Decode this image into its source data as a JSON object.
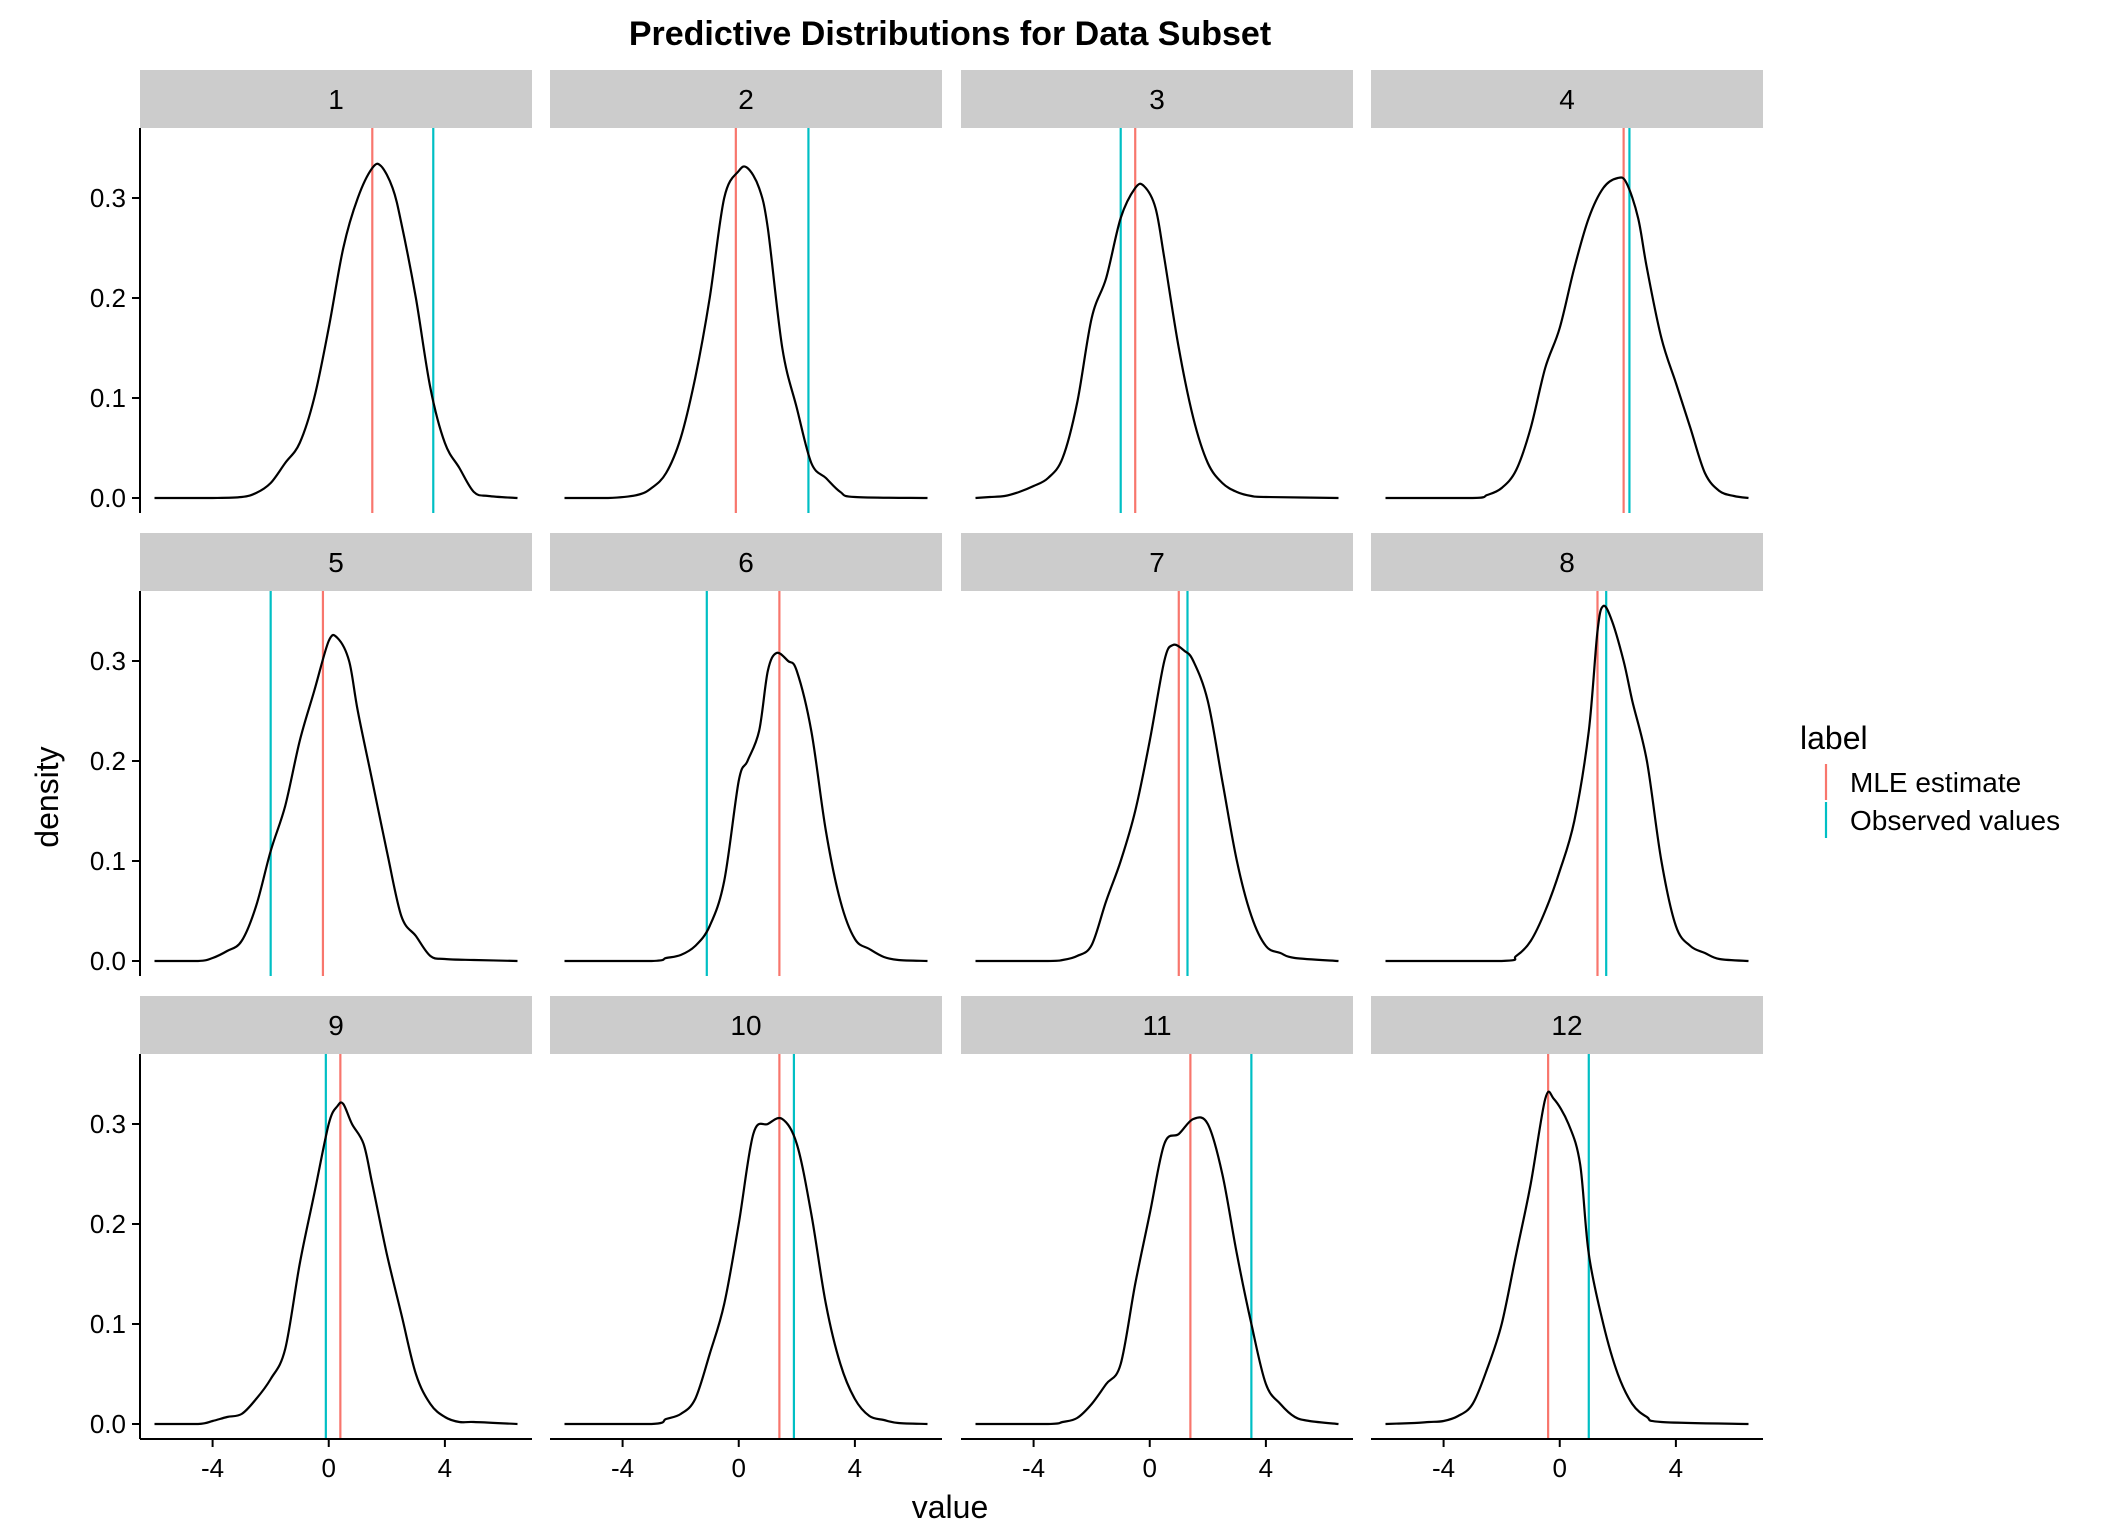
{
  "chart_data": {
    "type": "line",
    "title": "Predictive Distributions for Data Subset",
    "xlabel": "value",
    "ylabel": "density",
    "xlim": [
      -6.5,
      7
    ],
    "ylim": [
      -0.015,
      0.37
    ],
    "x_ticks": [
      -4,
      0,
      4
    ],
    "x_tick_labels": [
      "-4",
      "0",
      "4"
    ],
    "y_ticks": [
      0.0,
      0.1,
      0.2,
      0.3
    ],
    "y_tick_labels": [
      "0.0",
      "0.1",
      "0.2",
      "0.3"
    ],
    "grid": false,
    "layout": {
      "rows": 3,
      "cols": 4
    },
    "legend": {
      "title": "label",
      "position": "right",
      "entries": [
        {
          "name": "MLE estimate",
          "color": "#F8766D"
        },
        {
          "name": "Observed values",
          "color": "#00BFC4"
        }
      ]
    },
    "density_color": "#000000",
    "panels": [
      {
        "label": "1",
        "mle": 1.5,
        "observed": 3.6,
        "x_range": [
          -6,
          6.5
        ],
        "density": [
          [
            -6,
            0
          ],
          [
            -4,
            0
          ],
          [
            -3,
            0.001
          ],
          [
            -2.5,
            0.005
          ],
          [
            -2,
            0.015
          ],
          [
            -1.5,
            0.035
          ],
          [
            -1,
            0.055
          ],
          [
            -0.5,
            0.1
          ],
          [
            0,
            0.17
          ],
          [
            0.5,
            0.25
          ],
          [
            1,
            0.3
          ],
          [
            1.5,
            0.33
          ],
          [
            1.8,
            0.332
          ],
          [
            2.2,
            0.31
          ],
          [
            2.5,
            0.275
          ],
          [
            3,
            0.2
          ],
          [
            3.5,
            0.11
          ],
          [
            4,
            0.055
          ],
          [
            4.5,
            0.03
          ],
          [
            5,
            0.006
          ],
          [
            5.5,
            0.002
          ],
          [
            6.5,
            0
          ]
        ]
      },
      {
        "label": "2",
        "mle": -0.1,
        "observed": 2.4,
        "x_range": [
          -6,
          6.5
        ],
        "density": [
          [
            -6,
            0
          ],
          [
            -4.5,
            0
          ],
          [
            -3.5,
            0.003
          ],
          [
            -3,
            0.01
          ],
          [
            -2.5,
            0.025
          ],
          [
            -2,
            0.06
          ],
          [
            -1.5,
            0.12
          ],
          [
            -1,
            0.2
          ],
          [
            -0.5,
            0.3
          ],
          [
            0,
            0.327
          ],
          [
            0.3,
            0.33
          ],
          [
            0.7,
            0.31
          ],
          [
            1,
            0.27
          ],
          [
            1.5,
            0.15
          ],
          [
            2,
            0.09
          ],
          [
            2.5,
            0.035
          ],
          [
            3,
            0.02
          ],
          [
            3.5,
            0.006
          ],
          [
            4,
            0.001
          ],
          [
            6.5,
            0
          ]
        ]
      },
      {
        "label": "3",
        "mle": -0.5,
        "observed": -1.0,
        "x_range": [
          -6,
          6.5
        ],
        "density": [
          [
            -6,
            0
          ],
          [
            -5.5,
            0.001
          ],
          [
            -5,
            0.002
          ],
          [
            -4.5,
            0.006
          ],
          [
            -4,
            0.012
          ],
          [
            -3.5,
            0.02
          ],
          [
            -3,
            0.04
          ],
          [
            -2.5,
            0.095
          ],
          [
            -2,
            0.18
          ],
          [
            -1.5,
            0.22
          ],
          [
            -1,
            0.28
          ],
          [
            -0.5,
            0.31
          ],
          [
            -0.2,
            0.312
          ],
          [
            0.2,
            0.29
          ],
          [
            0.5,
            0.24
          ],
          [
            1,
            0.15
          ],
          [
            1.5,
            0.08
          ],
          [
            2,
            0.035
          ],
          [
            2.5,
            0.015
          ],
          [
            3,
            0.006
          ],
          [
            3.5,
            0.002
          ],
          [
            4,
            0.001
          ],
          [
            6.5,
            0
          ]
        ]
      },
      {
        "label": "4",
        "mle": 2.2,
        "observed": 2.4,
        "x_range": [
          -6,
          6.5
        ],
        "density": [
          [
            -6,
            0
          ],
          [
            -3,
            0
          ],
          [
            -2.5,
            0.003
          ],
          [
            -2,
            0.01
          ],
          [
            -1.5,
            0.028
          ],
          [
            -1,
            0.07
          ],
          [
            -0.5,
            0.13
          ],
          [
            0,
            0.17
          ],
          [
            0.5,
            0.23
          ],
          [
            1,
            0.28
          ],
          [
            1.5,
            0.31
          ],
          [
            2,
            0.32
          ],
          [
            2.3,
            0.315
          ],
          [
            2.7,
            0.28
          ],
          [
            3,
            0.23
          ],
          [
            3.5,
            0.16
          ],
          [
            4,
            0.115
          ],
          [
            4.5,
            0.07
          ],
          [
            5,
            0.025
          ],
          [
            5.5,
            0.007
          ],
          [
            6,
            0.002
          ],
          [
            6.5,
            0
          ]
        ]
      },
      {
        "label": "5",
        "mle": -0.2,
        "observed": -2.0,
        "x_range": [
          -6,
          6.5
        ],
        "density": [
          [
            -6,
            0
          ],
          [
            -4.5,
            0
          ],
          [
            -4,
            0.003
          ],
          [
            -3.5,
            0.01
          ],
          [
            -3,
            0.02
          ],
          [
            -2.5,
            0.055
          ],
          [
            -2,
            0.11
          ],
          [
            -1.5,
            0.155
          ],
          [
            -1,
            0.22
          ],
          [
            -0.5,
            0.27
          ],
          [
            0,
            0.32
          ],
          [
            0.3,
            0.323
          ],
          [
            0.7,
            0.3
          ],
          [
            1,
            0.25
          ],
          [
            1.5,
            0.18
          ],
          [
            2,
            0.11
          ],
          [
            2.5,
            0.045
          ],
          [
            3,
            0.025
          ],
          [
            3.5,
            0.005
          ],
          [
            4,
            0.002
          ],
          [
            5,
            0.001
          ],
          [
            6.5,
            0
          ]
        ]
      },
      {
        "label": "6",
        "mle": 1.4,
        "observed": -1.1,
        "x_range": [
          -6,
          6.5
        ],
        "density": [
          [
            -6,
            0
          ],
          [
            -3,
            0
          ],
          [
            -2.5,
            0.003
          ],
          [
            -2,
            0.006
          ],
          [
            -1.5,
            0.015
          ],
          [
            -1,
            0.035
          ],
          [
            -0.5,
            0.08
          ],
          [
            0,
            0.18
          ],
          [
            0.3,
            0.2
          ],
          [
            0.7,
            0.23
          ],
          [
            1,
            0.29
          ],
          [
            1.3,
            0.308
          ],
          [
            1.7,
            0.3
          ],
          [
            2,
            0.29
          ],
          [
            2.5,
            0.23
          ],
          [
            3,
            0.13
          ],
          [
            3.5,
            0.06
          ],
          [
            4,
            0.022
          ],
          [
            4.5,
            0.012
          ],
          [
            5,
            0.004
          ],
          [
            5.5,
            0.001
          ],
          [
            6.5,
            0
          ]
        ]
      },
      {
        "label": "7",
        "mle": 1.0,
        "observed": 1.3,
        "x_range": [
          -6,
          6.5
        ],
        "density": [
          [
            -6,
            0
          ],
          [
            -3.5,
            0
          ],
          [
            -3,
            0.001
          ],
          [
            -2.5,
            0.005
          ],
          [
            -2,
            0.016
          ],
          [
            -1.5,
            0.06
          ],
          [
            -1,
            0.1
          ],
          [
            -0.5,
            0.15
          ],
          [
            0,
            0.22
          ],
          [
            0.5,
            0.3
          ],
          [
            0.8,
            0.316
          ],
          [
            1.2,
            0.31
          ],
          [
            1.5,
            0.3
          ],
          [
            2,
            0.26
          ],
          [
            2.5,
            0.18
          ],
          [
            3,
            0.1
          ],
          [
            3.5,
            0.045
          ],
          [
            4,
            0.015
          ],
          [
            4.5,
            0.008
          ],
          [
            5,
            0.003
          ],
          [
            6.5,
            0
          ]
        ]
      },
      {
        "label": "8",
        "mle": 1.3,
        "observed": 1.6,
        "x_range": [
          -6,
          6.5
        ],
        "density": [
          [
            -6,
            0
          ],
          [
            -2,
            0
          ],
          [
            -1.5,
            0.005
          ],
          [
            -1,
            0.02
          ],
          [
            -0.5,
            0.05
          ],
          [
            0,
            0.09
          ],
          [
            0.5,
            0.14
          ],
          [
            1,
            0.23
          ],
          [
            1.3,
            0.33
          ],
          [
            1.5,
            0.355
          ],
          [
            1.8,
            0.34
          ],
          [
            2.2,
            0.3
          ],
          [
            2.5,
            0.26
          ],
          [
            3,
            0.2
          ],
          [
            3.5,
            0.1
          ],
          [
            4,
            0.035
          ],
          [
            4.5,
            0.015
          ],
          [
            5,
            0.008
          ],
          [
            5.5,
            0.002
          ],
          [
            6.5,
            0
          ]
        ]
      },
      {
        "label": "9",
        "mle": 0.4,
        "observed": -0.1,
        "x_range": [
          -6,
          6.5
        ],
        "density": [
          [
            -6,
            0
          ],
          [
            -4.5,
            0
          ],
          [
            -4,
            0.003
          ],
          [
            -3.5,
            0.007
          ],
          [
            -3,
            0.01
          ],
          [
            -2.5,
            0.025
          ],
          [
            -2,
            0.045
          ],
          [
            -1.5,
            0.075
          ],
          [
            -1,
            0.16
          ],
          [
            -0.5,
            0.23
          ],
          [
            0,
            0.3
          ],
          [
            0.3,
            0.318
          ],
          [
            0.5,
            0.32
          ],
          [
            0.8,
            0.3
          ],
          [
            1.2,
            0.28
          ],
          [
            1.5,
            0.24
          ],
          [
            2,
            0.17
          ],
          [
            2.5,
            0.11
          ],
          [
            3,
            0.05
          ],
          [
            3.5,
            0.02
          ],
          [
            4,
            0.007
          ],
          [
            4.5,
            0.002
          ],
          [
            5,
            0.002
          ],
          [
            6.5,
            0
          ]
        ]
      },
      {
        "label": "10",
        "mle": 1.4,
        "observed": 1.9,
        "x_range": [
          -6,
          6.5
        ],
        "density": [
          [
            -6,
            0
          ],
          [
            -3,
            0
          ],
          [
            -2.5,
            0.005
          ],
          [
            -2,
            0.01
          ],
          [
            -1.5,
            0.025
          ],
          [
            -1,
            0.07
          ],
          [
            -0.5,
            0.12
          ],
          [
            0,
            0.2
          ],
          [
            0.5,
            0.29
          ],
          [
            1,
            0.3
          ],
          [
            1.5,
            0.305
          ],
          [
            2,
            0.28
          ],
          [
            2.5,
            0.21
          ],
          [
            3,
            0.12
          ],
          [
            3.5,
            0.06
          ],
          [
            4,
            0.025
          ],
          [
            4.5,
            0.008
          ],
          [
            5,
            0.004
          ],
          [
            5.5,
            0.001
          ],
          [
            6.5,
            0
          ]
        ]
      },
      {
        "label": "11",
        "mle": 1.4,
        "observed": 3.5,
        "x_range": [
          -6,
          6.5
        ],
        "density": [
          [
            -6,
            0
          ],
          [
            -3.5,
            0
          ],
          [
            -3,
            0.002
          ],
          [
            -2.5,
            0.006
          ],
          [
            -2,
            0.02
          ],
          [
            -1.5,
            0.04
          ],
          [
            -1,
            0.06
          ],
          [
            -0.5,
            0.14
          ],
          [
            0,
            0.21
          ],
          [
            0.5,
            0.28
          ],
          [
            1,
            0.29
          ],
          [
            1.5,
            0.305
          ],
          [
            2,
            0.3
          ],
          [
            2.5,
            0.25
          ],
          [
            3,
            0.17
          ],
          [
            3.5,
            0.1
          ],
          [
            4,
            0.04
          ],
          [
            4.5,
            0.02
          ],
          [
            5,
            0.007
          ],
          [
            5.5,
            0.003
          ],
          [
            6.5,
            0
          ]
        ]
      },
      {
        "label": "12",
        "mle": -0.4,
        "observed": 1.0,
        "x_range": [
          -6,
          6.5
        ],
        "density": [
          [
            -6,
            0
          ],
          [
            -5,
            0.001
          ],
          [
            -4.5,
            0.002
          ],
          [
            -4,
            0.003
          ],
          [
            -3.5,
            0.008
          ],
          [
            -3,
            0.02
          ],
          [
            -2.5,
            0.055
          ],
          [
            -2,
            0.1
          ],
          [
            -1.5,
            0.17
          ],
          [
            -1,
            0.24
          ],
          [
            -0.5,
            0.325
          ],
          [
            -0.2,
            0.325
          ],
          [
            0.3,
            0.3
          ],
          [
            0.7,
            0.26
          ],
          [
            1,
            0.17
          ],
          [
            1.5,
            0.1
          ],
          [
            2,
            0.05
          ],
          [
            2.5,
            0.02
          ],
          [
            3,
            0.007
          ],
          [
            3.5,
            0.002
          ],
          [
            6.5,
            0
          ]
        ]
      }
    ]
  }
}
